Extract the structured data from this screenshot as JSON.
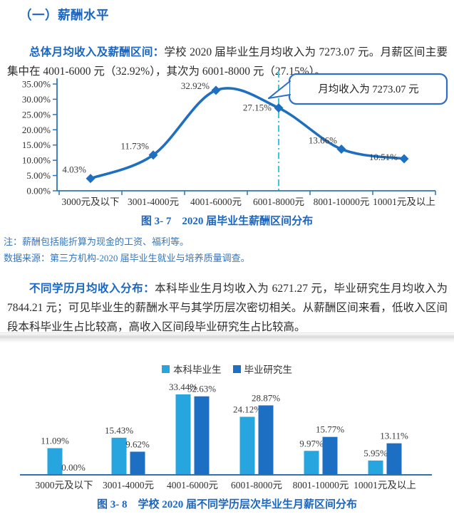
{
  "page": {
    "section_heading": "（一）薪酬水平",
    "para1": {
      "lead": "总体月均收入及薪酬区间：",
      "text": "学校 2020 届毕业生月均收入为 7273.07 元。月薪区间主要集中在 4001-6000 元（32.92%），其次为 6001-8000 元（27.15%）。"
    },
    "fig37_caption": "图 3- 7　2020 届毕业生薪酬区间分布",
    "notes": [
      "注：薪酬包括能折算为现金的工资、福利等。",
      "数据来源：第三方机构-2020 届毕业生就业与培养质量调查。"
    ],
    "para2": {
      "lead": "不同学历月均收入分布：",
      "text": "本科毕业生月均收入为 6271.27 元，毕业研究生月均收入为 7844.21 元；可见毕业生的薪酬水平与其学历层次密切相关。从薪酬区间来看，低收入区间段本科毕业生占比较高，高收入区间段毕业研究生占比较高。"
    },
    "fig38_caption": "图 3- 8　学校 2020 届不同学历层次毕业生月薪区间分布"
  },
  "colors": {
    "heading_blue": "#1a66c2",
    "note_blue": "#3575bd",
    "axis_blue": "#2e74b5",
    "line_blue": "#1e6fc0",
    "bar_light_blue": "#27a5de",
    "bar_dark_blue": "#1c6fc3",
    "dashed_cyan": "#3ec7da",
    "callout_border": "#2d6fc4",
    "label_gray": "#3a3a3a"
  },
  "chart_data": [
    {
      "type": "line",
      "title": "图 3- 7 2020 届毕业生薪酬区间分布",
      "categories": [
        "3000元及以下",
        "3001-4000元",
        "4001-6000元",
        "6001-8000元",
        "8001-10000元",
        "10001元及以上"
      ],
      "values": [
        4.03,
        11.73,
        32.92,
        27.15,
        13.66,
        10.51
      ],
      "point_labels": [
        "4.03%",
        "11.73%",
        "32.92%",
        "27.15%",
        "13.66%",
        "10.51%"
      ],
      "ylim": [
        0,
        35
      ],
      "ytick_step": 5,
      "ytick_labels": [
        "0.00%",
        "5.00%",
        "10.00%",
        "15.00%",
        "20.00%",
        "25.00%",
        "30.00%",
        "35.00%"
      ],
      "grid": false,
      "marker": "diamond",
      "annotation": {
        "text": "月均收入为 7273.07 元",
        "at_category": "6001-8000元"
      }
    },
    {
      "type": "bar",
      "title": "图 3- 8 学校 2020 届不同学历层次毕业生月薪区间分布",
      "categories": [
        "3000元及以下",
        "3001-4000元",
        "4001-6000元",
        "6001-8000元",
        "8001-10000元",
        "10001元及以上"
      ],
      "series": [
        {
          "name": "本科毕业生",
          "values": [
            11.09,
            15.43,
            33.44,
            24.12,
            9.97,
            5.95
          ],
          "value_labels": [
            "11.09%",
            "15.43%",
            "33.44%",
            "24.12%",
            "9.97%",
            "5.95%"
          ]
        },
        {
          "name": "毕业研究生",
          "values": [
            0.0,
            9.62,
            32.63,
            28.87,
            15.77,
            13.11
          ],
          "value_labels": [
            "0.00%",
            "9.62%",
            "32.63%",
            "28.87%",
            "15.77%",
            "13.11%"
          ]
        }
      ],
      "legend_position": "top",
      "value_labels_shown": true
    }
  ]
}
